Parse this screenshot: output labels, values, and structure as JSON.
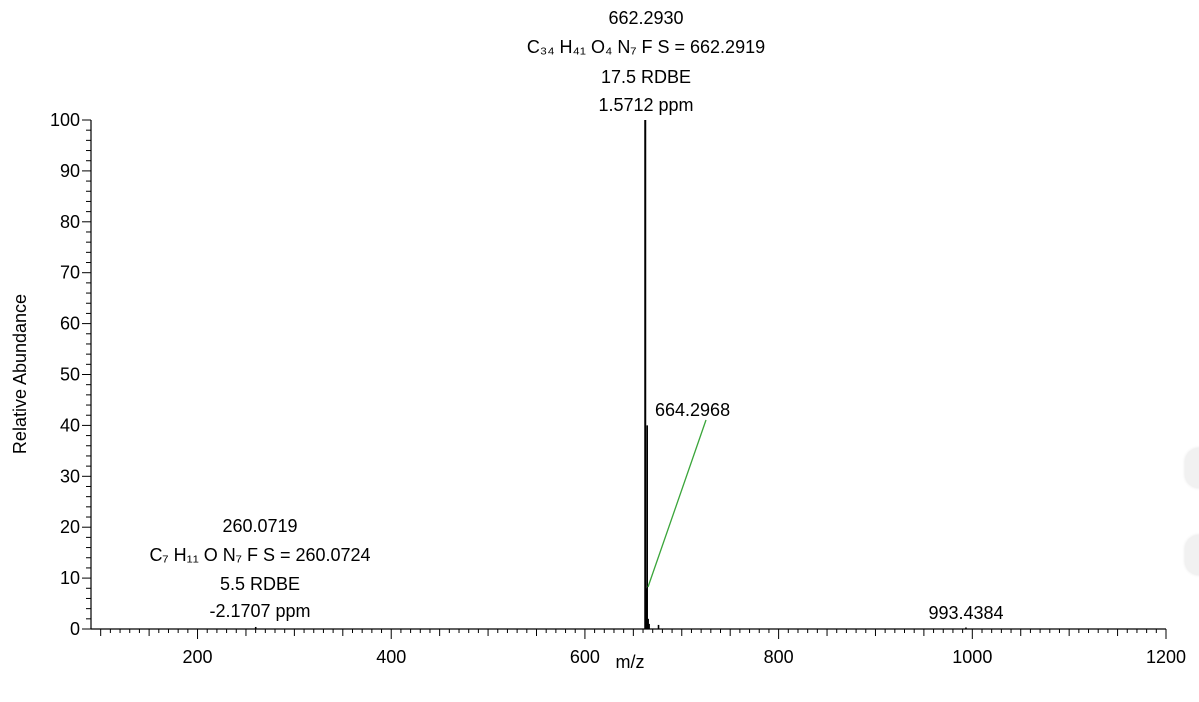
{
  "chart_data": {
    "type": "mass-spectrum",
    "header": "",
    "xlabel": "m/z",
    "ylabel": "Relative Abundance",
    "xlim": [
      90,
      1200
    ],
    "ylim": [
      0,
      100
    ],
    "x_ticks": [
      200,
      400,
      600,
      800,
      1000,
      1200
    ],
    "y_ticks": [
      0,
      10,
      20,
      30,
      40,
      50,
      60,
      70,
      80,
      90,
      100
    ],
    "peaks": [
      {
        "mz": 662.293,
        "intensity": 100
      },
      {
        "mz": 664.2968,
        "intensity": 40
      },
      {
        "mz": 663.29,
        "intensity": 8
      },
      {
        "mz": 665.29,
        "intensity": 2
      },
      {
        "mz": 666.29,
        "intensity": 1
      },
      {
        "mz": 676.0,
        "intensity": 0.8
      },
      {
        "mz": 260.0719,
        "intensity": 0.4
      },
      {
        "mz": 993.4384,
        "intensity": 0.3
      }
    ],
    "annotations": [
      {
        "id": "main",
        "lines": [
          "662.2930",
          "C₃₄ H₄₁ O₄ N₇ F S = 662.2919",
          "17.5 RDBE",
          "1.5712 ppm"
        ]
      },
      {
        "id": "iso",
        "lines": [
          "664.2968"
        ]
      },
      {
        "id": "frag",
        "lines": [
          "260.0719",
          "C₇ H₁₁ O N₇ F S = 260.0724",
          "5.5 RDBE",
          "-2.1707 ppm"
        ]
      },
      {
        "id": "high",
        "lines": [
          "993.4384"
        ]
      }
    ],
    "colors": {
      "axis": "#000000",
      "peak": "#000000",
      "leader_line": "#3aa53a",
      "header": "#1f3fbf"
    }
  }
}
